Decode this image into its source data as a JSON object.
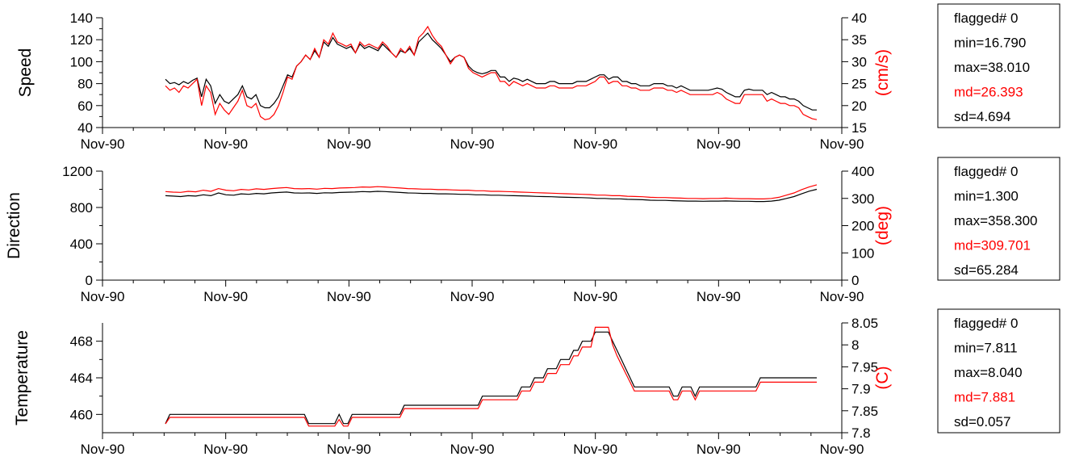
{
  "chart_data": [
    {
      "type": "line",
      "ylabel": "Speed",
      "ylabel_right": "(cm/s)",
      "ylim": [
        40,
        140
      ],
      "yticks": [
        40,
        60,
        80,
        100,
        120,
        140
      ],
      "ylim_right": [
        15,
        40
      ],
      "yticks_right": [
        15,
        20,
        25,
        30,
        35,
        40
      ],
      "x_tick_labels": [
        "Nov-90",
        "Nov-90",
        "Nov-90",
        "Nov-90",
        "Nov-90",
        "Nov-90",
        "Nov-90"
      ],
      "stats": {
        "flagged": "flagged# 0",
        "min": "min=16.790",
        "max": "max=38.010",
        "md": "md=26.393",
        "sd": "sd=4.694"
      },
      "series": [
        {
          "color": "#000000",
          "axis": "left",
          "values": [
            84,
            80,
            81,
            79,
            82,
            80,
            83,
            85,
            68,
            84,
            78,
            62,
            70,
            64,
            62,
            66,
            70,
            78,
            68,
            66,
            70,
            60,
            58,
            58,
            62,
            68,
            78,
            88,
            86,
            96,
            100,
            106,
            102,
            110,
            104,
            118,
            114,
            122,
            116,
            114,
            112,
            114,
            108,
            116,
            112,
            114,
            112,
            110,
            116,
            112,
            108,
            104,
            110,
            108,
            112,
            106,
            118,
            122,
            126,
            120,
            116,
            112,
            106,
            100,
            104,
            106,
            104,
            96,
            92,
            90,
            89,
            90,
            92,
            92,
            86,
            86,
            82,
            85,
            84,
            82,
            84,
            82,
            80,
            80,
            80,
            82,
            82,
            80,
            80,
            80,
            80,
            82,
            82,
            82,
            84,
            86,
            88,
            88,
            84,
            86,
            86,
            82,
            82,
            80,
            80,
            78,
            78,
            78,
            80,
            80,
            80,
            78,
            78,
            76,
            78,
            76,
            74,
            74,
            74,
            74,
            74,
            75,
            76,
            75,
            72,
            70,
            68,
            68,
            74,
            75,
            74,
            74,
            74,
            70,
            72,
            70,
            68,
            68,
            66,
            66,
            64,
            60,
            58,
            56,
            56
          ]
        },
        {
          "color": "#ff0000",
          "axis": "right",
          "values": [
            24.5,
            23.5,
            24.0,
            23.0,
            24.5,
            24.0,
            25.0,
            26.0,
            20.0,
            24.5,
            23.0,
            18.0,
            20.5,
            19.0,
            18.0,
            19.5,
            21.0,
            23.5,
            20.0,
            19.5,
            20.5,
            17.5,
            16.8,
            17.0,
            18.0,
            20.0,
            23.0,
            26.5,
            26.0,
            29.0,
            30.0,
            31.5,
            30.5,
            33.0,
            31.0,
            35.0,
            34.0,
            36.5,
            34.5,
            34.0,
            33.5,
            34.0,
            32.0,
            34.5,
            33.5,
            34.0,
            33.5,
            33.0,
            34.5,
            33.5,
            32.0,
            31.0,
            33.0,
            32.0,
            33.5,
            31.5,
            35.5,
            36.5,
            38.0,
            36.0,
            34.5,
            33.5,
            31.5,
            29.5,
            31.0,
            31.5,
            31.0,
            28.5,
            27.5,
            27.0,
            26.5,
            27.0,
            27.5,
            27.5,
            25.5,
            25.5,
            24.5,
            25.5,
            25.0,
            24.5,
            25.0,
            24.5,
            24.0,
            24.0,
            24.0,
            24.5,
            24.5,
            24.0,
            24.0,
            24.0,
            24.0,
            24.5,
            24.5,
            24.5,
            25.0,
            25.5,
            26.5,
            26.5,
            25.0,
            25.5,
            25.5,
            24.5,
            24.5,
            24.0,
            24.0,
            23.5,
            23.5,
            23.5,
            24.0,
            24.0,
            24.0,
            23.5,
            23.5,
            23.0,
            23.5,
            23.0,
            22.5,
            22.5,
            22.5,
            22.5,
            22.5,
            22.5,
            23.0,
            22.5,
            21.5,
            21.0,
            20.5,
            20.5,
            22.5,
            22.5,
            22.5,
            22.5,
            22.5,
            21.0,
            21.5,
            21.0,
            20.5,
            20.5,
            20.0,
            20.0,
            19.5,
            18.0,
            17.5,
            17.0,
            16.8
          ]
        }
      ]
    },
    {
      "type": "line",
      "ylabel": "Direction",
      "ylabel_right": "(deg)",
      "ylim": [
        0,
        1200
      ],
      "yticks": [
        0,
        400,
        800,
        1200
      ],
      "ylim_right": [
        0,
        400
      ],
      "yticks_right": [
        0,
        100,
        200,
        300,
        400
      ],
      "x_tick_labels": [
        "Nov-90",
        "Nov-90",
        "Nov-90",
        "Nov-90",
        "Nov-90",
        "Nov-90",
        "Nov-90"
      ],
      "stats": {
        "flagged": "flagged# 0",
        "min": "min=1.300",
        "max": "max=358.300",
        "md": "md=309.701",
        "sd": "sd=65.284"
      },
      "series": [
        {
          "color": "#000000",
          "axis": "left",
          "values": [
            930,
            925,
            920,
            930,
            925,
            940,
            930,
            960,
            940,
            935,
            950,
            945,
            955,
            950,
            960,
            965,
            970,
            960,
            958,
            960,
            955,
            962,
            960,
            965,
            968,
            970,
            975,
            972,
            978,
            975,
            970,
            965,
            960,
            958,
            955,
            955,
            950,
            950,
            948,
            945,
            945,
            940,
            940,
            935,
            935,
            932,
            930,
            928,
            925,
            922,
            920,
            918,
            915,
            912,
            910,
            908,
            905,
            900,
            900,
            895,
            895,
            890,
            888,
            885,
            880,
            878,
            878,
            875,
            872,
            870,
            870,
            868,
            870,
            870,
            872,
            870,
            868,
            868,
            866,
            866,
            870,
            880,
            900,
            920,
            950,
            980,
            1000
          ]
        },
        {
          "color": "#ff0000",
          "axis": "right",
          "values": [
            325,
            323,
            322,
            326,
            324,
            330,
            326,
            336,
            330,
            328,
            333,
            331,
            335,
            333,
            336,
            338,
            340,
            336,
            335,
            336,
            334,
            337,
            336,
            338,
            339,
            340,
            342,
            341,
            343,
            342,
            340,
            338,
            336,
            335,
            334,
            334,
            332,
            332,
            331,
            330,
            330,
            328,
            328,
            326,
            326,
            325,
            324,
            323,
            322,
            321,
            320,
            319,
            318,
            317,
            316,
            315,
            314,
            312,
            312,
            310,
            310,
            308,
            307,
            306,
            304,
            303,
            303,
            302,
            301,
            300,
            300,
            299,
            300,
            300,
            301,
            300,
            299,
            299,
            298,
            298,
            300,
            304,
            312,
            320,
            332,
            342,
            350
          ]
        }
      ]
    },
    {
      "type": "line",
      "ylabel": "Temperature",
      "ylabel_right": "(C)",
      "ylim": [
        458,
        470
      ],
      "yticks": [
        460,
        464,
        468
      ],
      "ylim_right": [
        7.8,
        8.05
      ],
      "yticks_right": [
        7.8,
        7.85,
        7.9,
        7.95,
        8,
        8.05
      ],
      "x_tick_labels": [
        "Nov-90",
        "Nov-90",
        "Nov-90",
        "Nov-90",
        "Nov-90",
        "Nov-90",
        "Nov-90"
      ],
      "stats": {
        "flagged": "flagged# 0",
        "min": "min=7.811",
        "max": "max=8.040",
        "md": "md=7.881",
        "sd": "sd=0.057"
      },
      "series": [
        {
          "color": "#000000",
          "axis": "left",
          "values": [
            459,
            460,
            460,
            460,
            460,
            460,
            460,
            460,
            460,
            460,
            460,
            460,
            460,
            460,
            460,
            460,
            460,
            460,
            460,
            460,
            460,
            460,
            460,
            460,
            460,
            460,
            460,
            460,
            460,
            460,
            460,
            460,
            460,
            459,
            459,
            459,
            459,
            459,
            459,
            459,
            460,
            459,
            459,
            460,
            460,
            460,
            460,
            460,
            460,
            460,
            460,
            460,
            460,
            460,
            460,
            461,
            461,
            461,
            461,
            461,
            461,
            461,
            461,
            461,
            461,
            461,
            461,
            461,
            461,
            461,
            461,
            461,
            461,
            462,
            462,
            462,
            462,
            462,
            462,
            462,
            462,
            462,
            463,
            463,
            463,
            464,
            464,
            464,
            465,
            465,
            465,
            466,
            466,
            466,
            467,
            467,
            468,
            468,
            468,
            469,
            469,
            469,
            469,
            468,
            467,
            466,
            465,
            464,
            463,
            463,
            463,
            463,
            463,
            463,
            463,
            463,
            463,
            462,
            462,
            463,
            463,
            463,
            462,
            463,
            463,
            463,
            463,
            463,
            463,
            463,
            463,
            463,
            463,
            463,
            463,
            463,
            463,
            464,
            464,
            464,
            464,
            464,
            464,
            464,
            464,
            464,
            464,
            464,
            464,
            464,
            464
          ]
        },
        {
          "color": "#ff0000",
          "axis": "right",
          "values": [
            7.82,
            7.835,
            7.835,
            7.835,
            7.835,
            7.835,
            7.835,
            7.835,
            7.835,
            7.835,
            7.835,
            7.835,
            7.835,
            7.835,
            7.835,
            7.835,
            7.835,
            7.835,
            7.835,
            7.835,
            7.835,
            7.835,
            7.835,
            7.835,
            7.835,
            7.835,
            7.835,
            7.835,
            7.835,
            7.835,
            7.835,
            7.835,
            7.835,
            7.815,
            7.815,
            7.815,
            7.815,
            7.815,
            7.815,
            7.815,
            7.83,
            7.815,
            7.815,
            7.835,
            7.835,
            7.835,
            7.835,
            7.835,
            7.835,
            7.835,
            7.835,
            7.835,
            7.835,
            7.835,
            7.835,
            7.855,
            7.855,
            7.855,
            7.855,
            7.855,
            7.855,
            7.855,
            7.855,
            7.855,
            7.855,
            7.855,
            7.855,
            7.855,
            7.855,
            7.855,
            7.855,
            7.855,
            7.855,
            7.875,
            7.875,
            7.875,
            7.875,
            7.875,
            7.875,
            7.875,
            7.875,
            7.875,
            7.895,
            7.895,
            7.895,
            7.915,
            7.915,
            7.915,
            7.935,
            7.935,
            7.935,
            7.955,
            7.955,
            7.955,
            7.975,
            7.975,
            7.995,
            7.995,
            7.995,
            8.04,
            8.04,
            8.04,
            8.04,
            8.0,
            7.975,
            7.955,
            7.935,
            7.915,
            7.895,
            7.895,
            7.895,
            7.895,
            7.895,
            7.895,
            7.895,
            7.895,
            7.895,
            7.875,
            7.875,
            7.895,
            7.895,
            7.895,
            7.875,
            7.895,
            7.895,
            7.895,
            7.895,
            7.895,
            7.895,
            7.895,
            7.895,
            7.895,
            7.895,
            7.895,
            7.895,
            7.895,
            7.895,
            7.915,
            7.915,
            7.915,
            7.915,
            7.915,
            7.915,
            7.915,
            7.915,
            7.915,
            7.915,
            7.915,
            7.915,
            7.915,
            7.915
          ]
        }
      ]
    }
  ]
}
